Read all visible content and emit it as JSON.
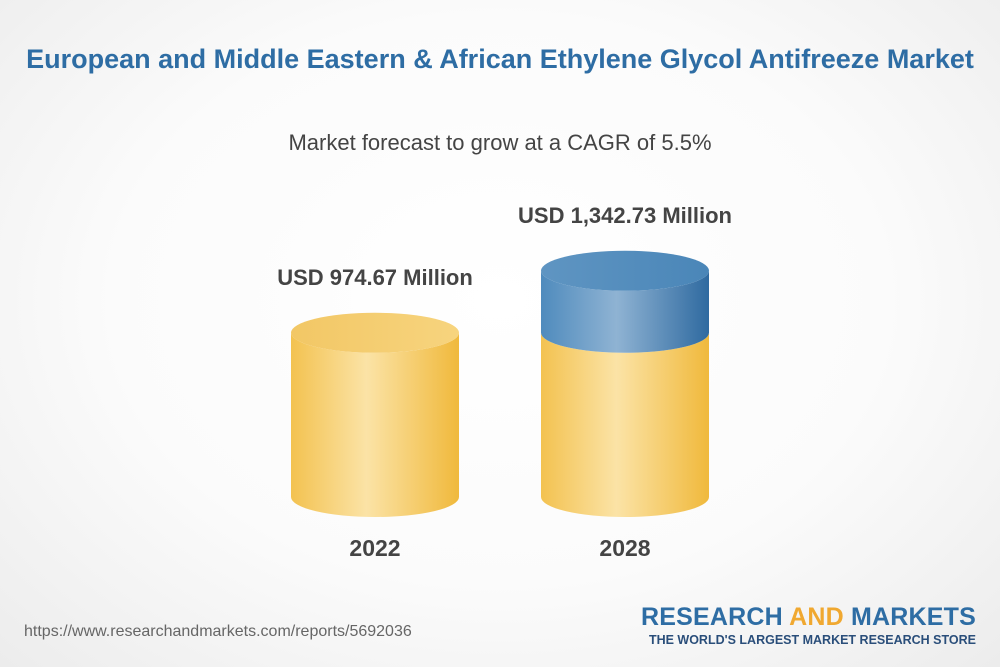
{
  "header": {
    "title": "European and Middle Eastern & African Ethylene Glycol Antifreeze Market",
    "subtitle": "Market forecast to grow at a CAGR of 5.5%"
  },
  "colors": {
    "base": "#f5c95a",
    "top_segment": "#4a86b8",
    "title": "#2e6da4",
    "accent": "#f0a830"
  },
  "chart_data": {
    "type": "bar",
    "categories": [
      "2022",
      "2028"
    ],
    "values": [
      974.67,
      1342.73
    ],
    "data_labels": [
      "USD 974.67 Million",
      "USD 1,342.73 Million"
    ],
    "base_value": 974.67,
    "unit": "USD Million",
    "title": "European and Middle Eastern & African Ethylene Glycol Antifreeze Market",
    "subtitle": "Market forecast to grow at a CAGR of 5.5%",
    "cagr": "5.5%",
    "grid": false
  },
  "footer": {
    "url": "https://www.researchandmarkets.com/reports/5692036",
    "brand_part1": "RESEARCH ",
    "brand_part2": "AND",
    "brand_part3": " MARKETS",
    "tagline": "THE WORLD'S LARGEST MARKET RESEARCH STORE"
  }
}
